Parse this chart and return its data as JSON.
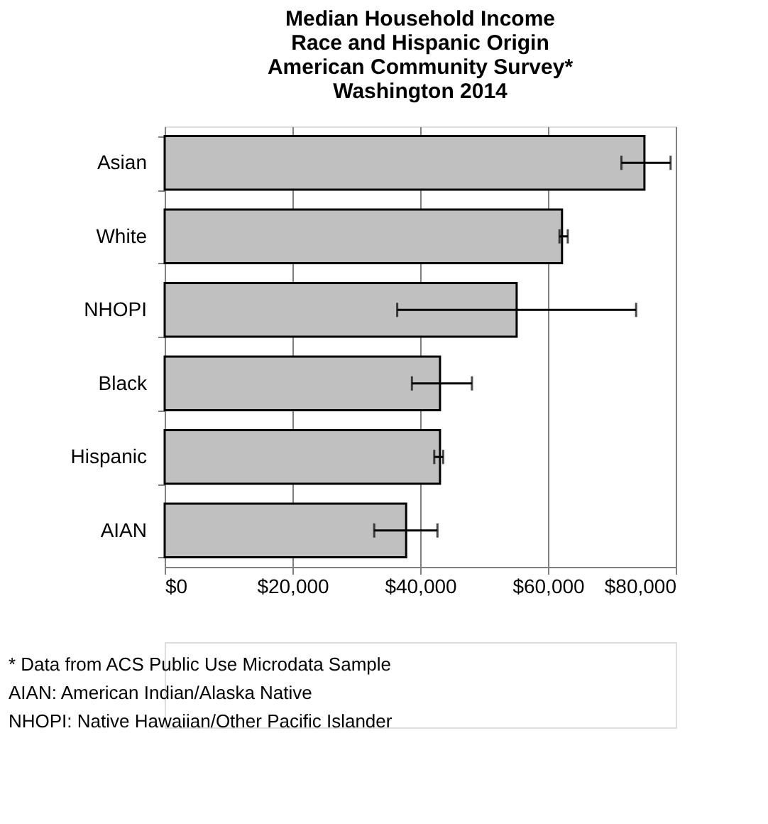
{
  "chart_data": {
    "type": "bar",
    "orientation": "horizontal",
    "title": [
      "Median Household Income",
      "Race and Hispanic Origin",
      "American Community  Survey*",
      "Washington 2014"
    ],
    "categories": [
      "Asian",
      "White",
      "NHOPI",
      "Black",
      "Hispanic",
      "AIAN"
    ],
    "values": [
      75100,
      62200,
      55100,
      43100,
      43100,
      37800
    ],
    "errors": [
      [
        71500,
        79200
      ],
      [
        61800,
        63100
      ],
      [
        36400,
        73800
      ],
      [
        38700,
        48100
      ],
      [
        42200,
        43600
      ],
      [
        32800,
        42700
      ]
    ],
    "color": "#c0c0c0",
    "xlim": [
      0,
      80000
    ],
    "xticks": [
      {
        "value": 0,
        "label": "$0"
      },
      {
        "value": 20000,
        "label": "$20,000"
      },
      {
        "value": 40000,
        "label": "$40,000"
      },
      {
        "value": 60000,
        "label": "$60,000"
      },
      {
        "value": 80000,
        "label": "$80,000"
      }
    ],
    "grid": "x",
    "annotations": [
      "* Data  from ACS Public Use Microdata Sample",
      "AIAN: American Indian/Alaska Native",
      "NHOPI:  Native Hawaiian/Other Pacific Islander"
    ]
  }
}
